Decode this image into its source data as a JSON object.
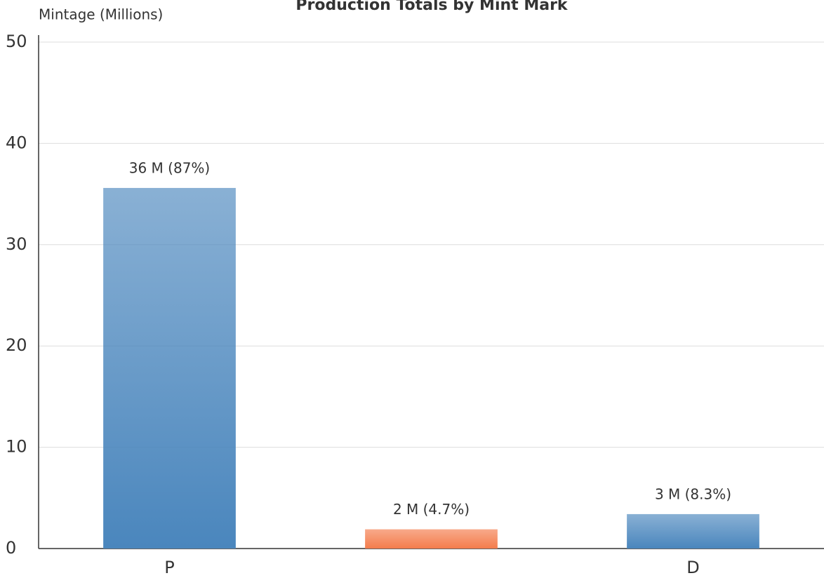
{
  "chart_data": {
    "type": "bar",
    "title": "Production Totals by Mint Mark",
    "y_label": "Mintage (Millions)",
    "categories": [
      "P",
      null,
      "D"
    ],
    "values": [
      35.6,
      1.9,
      3.4
    ],
    "value_labels": [
      "36 M (87%)",
      "2 M (4.7%)",
      "3 M (8.3%)"
    ],
    "colors": [
      "#4a86bd",
      "#f47c4c",
      "#4a86bd"
    ],
    "ylim": [
      0,
      50
    ],
    "yticks": [
      0,
      10,
      20,
      30,
      40,
      50
    ],
    "grid": true
  }
}
